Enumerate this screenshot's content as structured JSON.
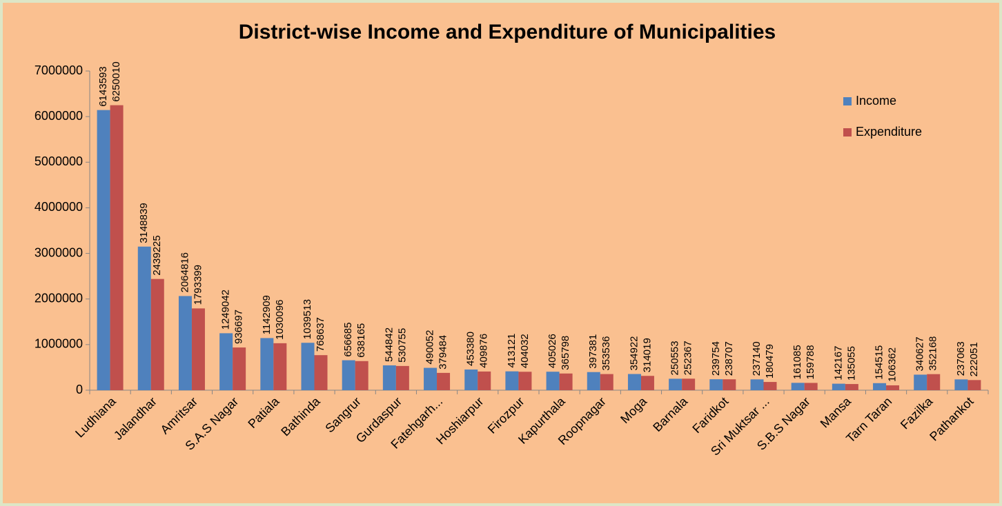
{
  "chart_data": {
    "type": "bar",
    "title": "District-wise Income and Expenditure of Municipalities",
    "categories": [
      "Ludhiana",
      "Jalandhar",
      "Amritsar",
      "S.A.S Nagar",
      "Patiala",
      "Bathinda",
      "Sangrur",
      "Gurdaspur",
      "Fatehgarh...",
      "Hoshiarpur",
      "Firozpur",
      "Kapurthala",
      "Roopnagar",
      "Moga",
      "Barnala",
      "Faridkot",
      "Sri Muktsar ...",
      "S.B.S Nagar",
      "Mansa",
      "Tarn Taran",
      "Fazilka",
      "Pathankot"
    ],
    "series": [
      {
        "name": "Income",
        "color": "#4f81bd",
        "values": [
          6143593,
          3148839,
          2064816,
          1249042,
          1142909,
          1039513,
          656685,
          544842,
          490052,
          453380,
          413121,
          405026,
          397381,
          354922,
          250553,
          239754,
          237140,
          161085,
          142167,
          154515,
          340627,
          237063
        ]
      },
      {
        "name": "Expenditure",
        "color": "#c0504d",
        "values": [
          6250010,
          2439225,
          1793399,
          936697,
          1030096,
          768637,
          638165,
          530755,
          379484,
          409876,
          404032,
          365798,
          353536,
          314019,
          252367,
          238707,
          180479,
          159788,
          135055,
          106362,
          352168,
          222051
        ]
      }
    ],
    "ylim": [
      0,
      7000000
    ],
    "yticks": [
      0,
      1000000,
      2000000,
      3000000,
      4000000,
      5000000,
      6000000,
      7000000
    ],
    "grid": false,
    "legend": "right"
  }
}
